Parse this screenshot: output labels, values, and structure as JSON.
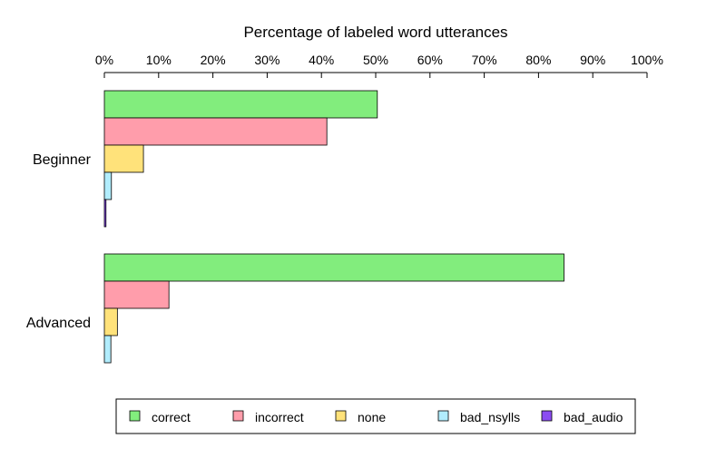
{
  "chart_data": {
    "type": "bar",
    "orientation": "horizontal",
    "xlabel": "Percentage of labeled word utterances",
    "xlim": [
      0,
      100
    ],
    "x_ticks": [
      "0%",
      "10%",
      "20%",
      "30%",
      "40%",
      "50%",
      "60%",
      "70%",
      "80%",
      "90%",
      "100%"
    ],
    "categories": [
      "Beginner",
      "Advanced"
    ],
    "series": [
      {
        "name": "correct",
        "color": "#82ed7d",
        "values": [
          50.3,
          84.7
        ]
      },
      {
        "name": "incorrect",
        "color": "#ff9dab",
        "values": [
          41.0,
          11.9
        ]
      },
      {
        "name": "none",
        "color": "#ffe27a",
        "values": [
          7.2,
          2.4
        ]
      },
      {
        "name": "bad_nsylls",
        "color": "#b1edfd",
        "values": [
          1.3,
          1.2
        ]
      },
      {
        "name": "bad_audio",
        "color": "#8b4cf2",
        "values": [
          0.3,
          0.0
        ]
      }
    ],
    "legend_position": "bottom",
    "grid": false
  }
}
